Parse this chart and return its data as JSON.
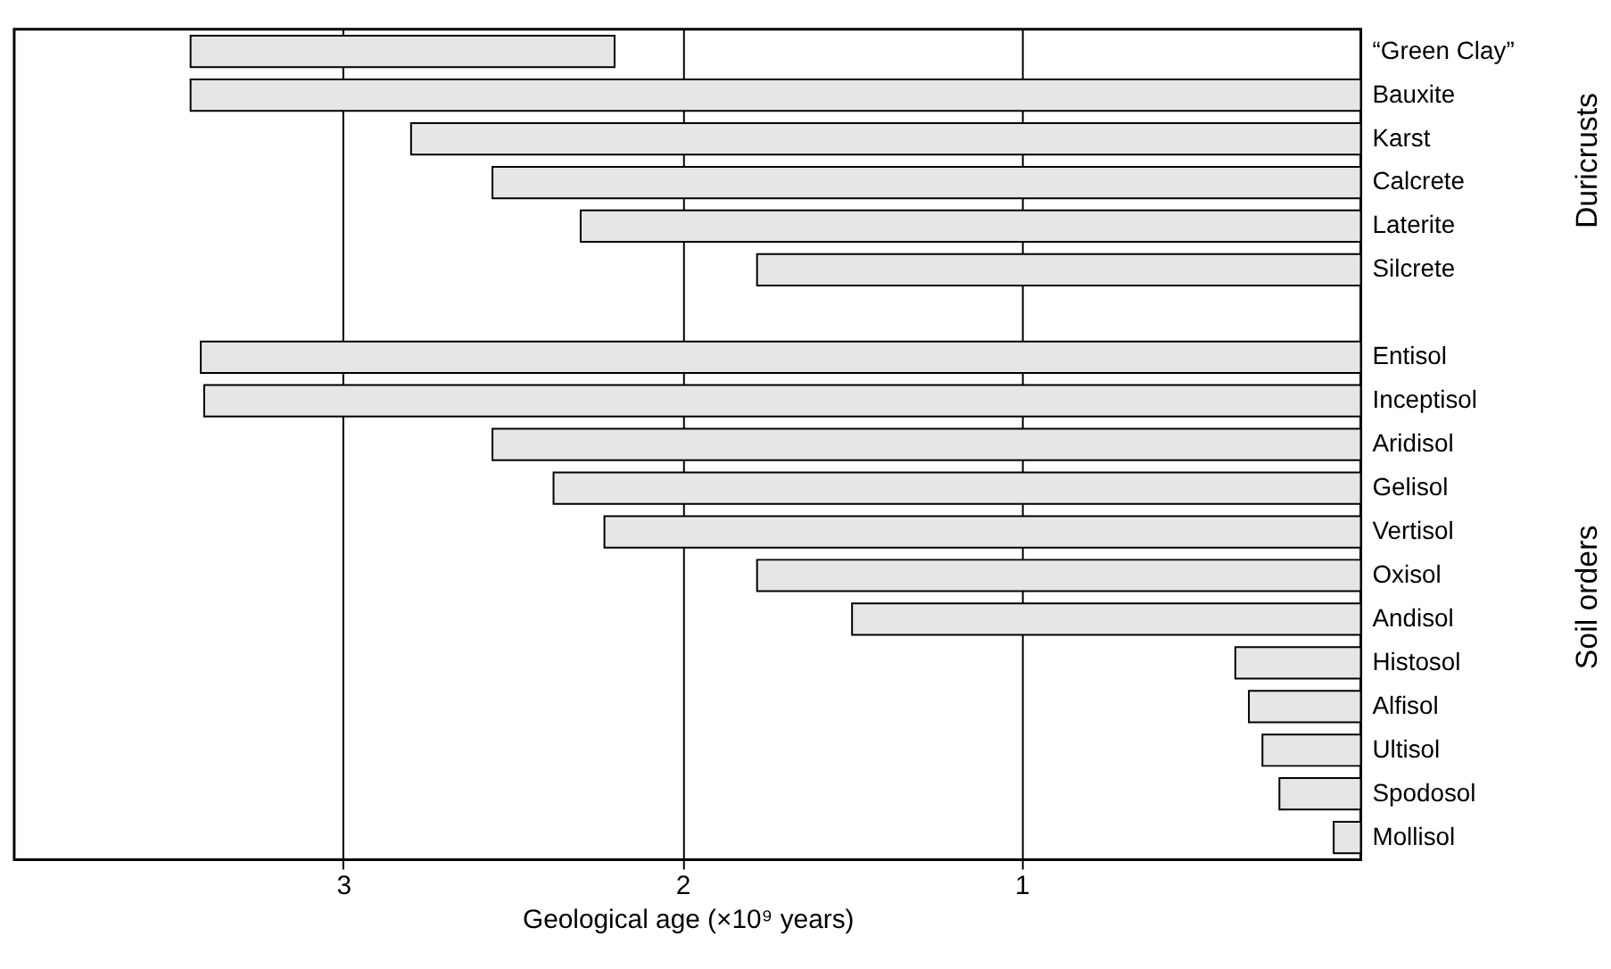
{
  "chart_data": {
    "type": "bar",
    "orientation": "horizontal",
    "xlabel": "Geological age (×10⁹ years)",
    "categories": [
      "“Green Clay”",
      "Bauxite",
      "Karst",
      "Calcrete",
      "Laterite",
      "Silcrete",
      null,
      "Entisol",
      "Inceptisol",
      "Aridisol",
      "Gelisol",
      "Vertisol",
      "Oxisol",
      "Andisol",
      "Histosol",
      "Alfisol",
      "Ultisol",
      "Spodosol",
      "Mollisol"
    ],
    "base": [
      2.2,
      0,
      0,
      0,
      0,
      0,
      null,
      0,
      0,
      0,
      0,
      0,
      0,
      0,
      0,
      0,
      0,
      0,
      0
    ],
    "values": [
      1.25,
      3.45,
      2.8,
      2.56,
      2.3,
      1.78,
      null,
      3.42,
      3.41,
      2.56,
      2.38,
      2.23,
      1.78,
      1.5,
      0.37,
      0.33,
      0.29,
      0.24,
      0.08
    ],
    "color": "#e6e6e6",
    "xlim": [
      3.97,
      0
    ],
    "xticks": [
      3,
      2,
      1
    ],
    "grid": "x",
    "annotations": [
      "Duricrusts",
      "Soil orders"
    ]
  }
}
